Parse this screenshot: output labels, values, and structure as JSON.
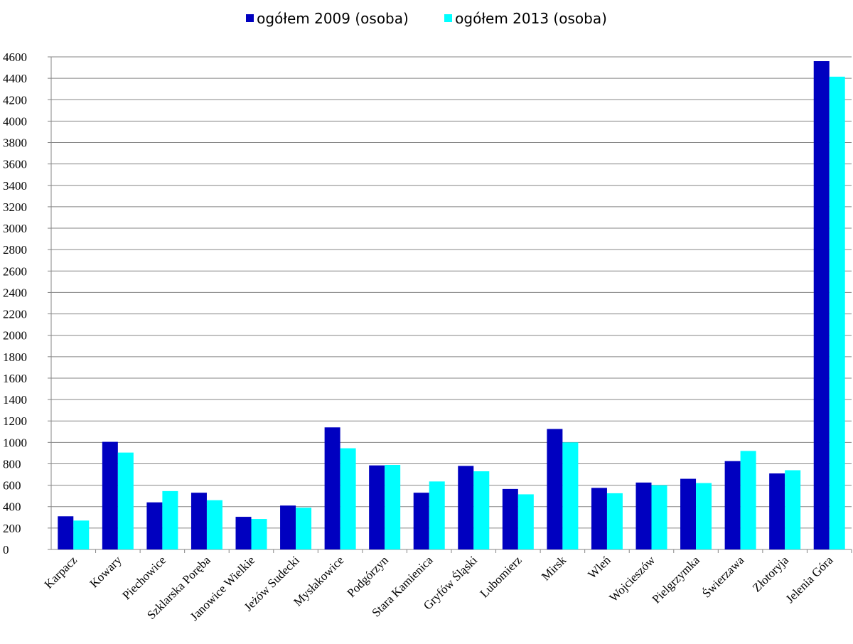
{
  "chart_data": {
    "type": "bar",
    "categories": [
      "Karpacz",
      "Kowary",
      "Piechowice",
      "Szklarska Poręba",
      "Janowice Wielkie",
      "Jeżów Sudecki",
      "Mysłakowice",
      "Podgórzyn",
      "Stara Kamienica",
      "Gryfów Śląski",
      "Lubomierz",
      "Mirsk",
      "Wleń",
      "Wojcieszów",
      "Pielgrzymka",
      "Świerzawa",
      "Złotoryja",
      "Jelenia Góra"
    ],
    "series": [
      {
        "name": "ogółem 2009 (osoba)",
        "color": "#0000c0",
        "values": [
          310,
          1005,
          440,
          530,
          305,
          410,
          1140,
          785,
          530,
          780,
          565,
          1125,
          575,
          625,
          660,
          825,
          710,
          4560
        ]
      },
      {
        "name": "ogółem 2013 (osoba)",
        "color": "#00ffff",
        "values": [
          270,
          905,
          545,
          460,
          285,
          390,
          945,
          790,
          635,
          730,
          515,
          1000,
          525,
          600,
          620,
          920,
          740,
          4415
        ]
      }
    ],
    "ylim": [
      0,
      4600
    ],
    "y_ticks": [
      0,
      200,
      400,
      600,
      800,
      1000,
      1200,
      1400,
      1600,
      1800,
      2000,
      2200,
      2400,
      2600,
      2800,
      3000,
      3200,
      3400,
      3600,
      3800,
      4000,
      4200,
      4400,
      4600
    ],
    "grid": true,
    "legend_position": "top"
  }
}
